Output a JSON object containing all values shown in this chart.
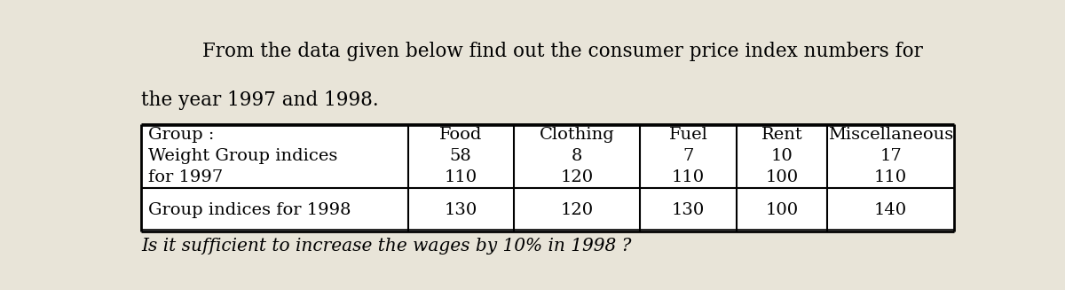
{
  "title_line1": "From the data given below find out the consumer price index numbers for",
  "title_line2": "the year 1997 and 1998.",
  "footer": "Is it sufficient to increase the wages by 10% in 1998 ?",
  "col_headers": [
    "Food",
    "Clothing",
    "Fuel",
    "Rent",
    "Miscellaneous"
  ],
  "row1_label_lines": [
    "Group :",
    "Weight Group indices",
    "for 1997"
  ],
  "row2_label": "Group indices for 1998",
  "weights": [
    58,
    8,
    7,
    10,
    17
  ],
  "indices_1997": [
    110,
    120,
    110,
    100,
    110
  ],
  "indices_1998": [
    130,
    120,
    130,
    100,
    140
  ],
  "bg_color": "#e8e4d8",
  "table_bg": "#ffffff",
  "title_fontsize": 15.5,
  "footer_fontsize": 14.5,
  "cell_fontsize": 14
}
